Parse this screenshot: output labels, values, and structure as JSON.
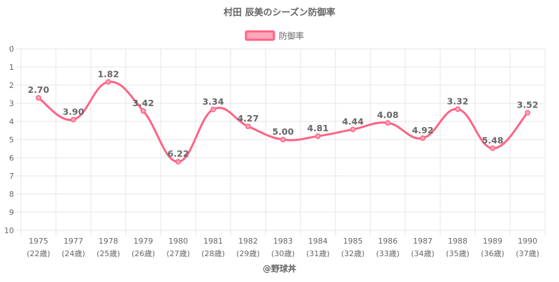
{
  "chart_data": {
    "type": "line",
    "title": "村田 辰美のシーズン防御率",
    "categories": [
      "1975",
      "1977",
      "1978",
      "1979",
      "1980",
      "1981",
      "1982",
      "1983",
      "1984",
      "1985",
      "1986",
      "1987",
      "1988",
      "1989",
      "1990"
    ],
    "category_sublabels": [
      "(22歳)",
      "(24歳)",
      "(25歳)",
      "(26歳)",
      "(27歳)",
      "(28歳)",
      "(29歳)",
      "(30歳)",
      "(31歳)",
      "(32歳)",
      "(33歳)",
      "(34歳)",
      "(35歳)",
      "(36歳)",
      "(37歳)"
    ],
    "series": [
      {
        "name": "防御率",
        "values": [
          2.7,
          3.9,
          1.82,
          3.42,
          6.22,
          3.34,
          4.27,
          5.0,
          4.81,
          4.44,
          4.08,
          4.92,
          3.32,
          5.48,
          3.52
        ],
        "value_labels": [
          "2.70",
          "3.90",
          "1.82",
          "3.42",
          "6.22",
          "3.34",
          "4.27",
          "5.00",
          "4.81",
          "4.44",
          "4.08",
          "4.92",
          "3.32",
          "5.48",
          "3.52"
        ]
      }
    ],
    "ylim": [
      0,
      10
    ],
    "y_reversed": true,
    "y_ticks": [
      "0",
      "1",
      "2",
      "3",
      "4",
      "5",
      "6",
      "7",
      "8",
      "9",
      "10"
    ],
    "grid": true,
    "legend_position": "top",
    "xlabel": "",
    "ylabel": "",
    "colors": {
      "line": "#ff6384",
      "fill": "#ffa8bb",
      "grid": "#e6e6e6",
      "text": "#666666"
    }
  },
  "credit": "@野球丼"
}
